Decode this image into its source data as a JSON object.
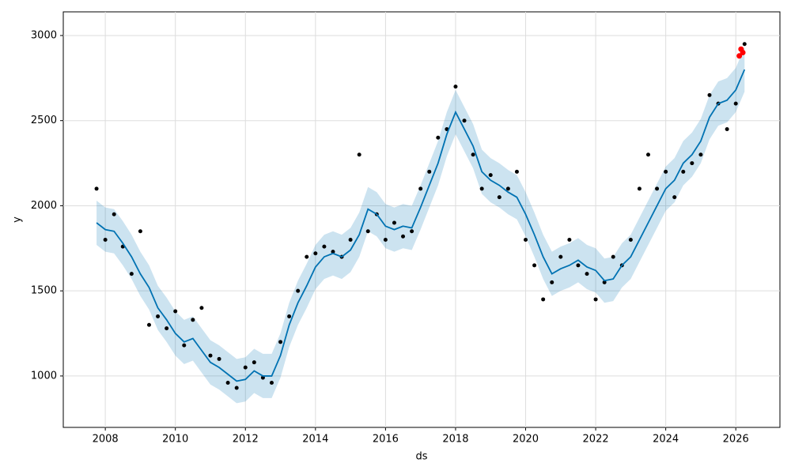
{
  "chart_data": {
    "type": "forecast",
    "x_label": "ds",
    "y_label": "y",
    "xlim": [
      2006.8,
      2027.26
    ],
    "ylim": [
      698,
      3139
    ],
    "xticks": [
      2008,
      2010,
      2012,
      2014,
      2016,
      2018,
      2020,
      2022,
      2024,
      2026
    ],
    "yticks": [
      1000,
      1500,
      2000,
      2500,
      3000
    ],
    "grid": true,
    "x": [
      2007.75,
      2008,
      2008.25,
      2008.5,
      2008.75,
      2009,
      2009.25,
      2009.5,
      2009.75,
      2010,
      2010.25,
      2010.5,
      2010.75,
      2011,
      2011.25,
      2011.5,
      2011.75,
      2012,
      2012.25,
      2012.5,
      2012.75,
      2013,
      2013.25,
      2013.5,
      2013.75,
      2014,
      2014.25,
      2014.5,
      2014.75,
      2015,
      2015.25,
      2015.5,
      2015.75,
      2016,
      2016.25,
      2016.5,
      2016.75,
      2017,
      2017.25,
      2017.5,
      2017.75,
      2018,
      2018.25,
      2018.5,
      2018.75,
      2019,
      2019.25,
      2019.5,
      2019.75,
      2020,
      2020.25,
      2020.5,
      2020.75,
      2021,
      2021.25,
      2021.5,
      2021.75,
      2022,
      2022.25,
      2022.5,
      2022.75,
      2023,
      2023.25,
      2023.5,
      2023.75,
      2024,
      2024.25,
      2024.5,
      2024.75,
      2025,
      2025.25,
      2025.5,
      2025.75,
      2026,
      2026.25
    ],
    "forecast": {
      "color": "#0072B2",
      "band_color": "#0072B2",
      "values": [
        1900,
        1860,
        1850,
        1780,
        1700,
        1600,
        1520,
        1400,
        1330,
        1250,
        1200,
        1220,
        1150,
        1080,
        1050,
        1010,
        970,
        980,
        1030,
        1000,
        1000,
        1120,
        1300,
        1430,
        1530,
        1640,
        1700,
        1720,
        1700,
        1740,
        1830,
        1980,
        1950,
        1880,
        1860,
        1880,
        1870,
        1990,
        2120,
        2250,
        2420,
        2550,
        2450,
        2350,
        2200,
        2150,
        2120,
        2080,
        2050,
        1950,
        1830,
        1700,
        1600,
        1630,
        1650,
        1680,
        1640,
        1620,
        1560,
        1570,
        1650,
        1700,
        1800,
        1900,
        2000,
        2100,
        2150,
        2250,
        2300,
        2380,
        2520,
        2600,
        2620,
        2680,
        2800
      ],
      "lower": [
        1770,
        1730,
        1720,
        1650,
        1570,
        1470,
        1390,
        1270,
        1200,
        1120,
        1070,
        1090,
        1020,
        950,
        920,
        880,
        840,
        850,
        900,
        870,
        870,
        990,
        1170,
        1300,
        1400,
        1510,
        1570,
        1590,
        1570,
        1610,
        1700,
        1850,
        1820,
        1750,
        1730,
        1750,
        1740,
        1860,
        1990,
        2120,
        2290,
        2420,
        2320,
        2220,
        2070,
        2020,
        1990,
        1950,
        1920,
        1820,
        1700,
        1570,
        1470,
        1500,
        1520,
        1550,
        1510,
        1490,
        1430,
        1440,
        1520,
        1570,
        1670,
        1770,
        1870,
        1970,
        2020,
        2120,
        2170,
        2250,
        2390,
        2470,
        2490,
        2550,
        2670
      ],
      "upper": [
        2030,
        1990,
        1980,
        1910,
        1830,
        1730,
        1650,
        1530,
        1460,
        1380,
        1330,
        1350,
        1280,
        1210,
        1180,
        1140,
        1100,
        1110,
        1160,
        1130,
        1130,
        1250,
        1430,
        1560,
        1660,
        1770,
        1830,
        1850,
        1830,
        1870,
        1960,
        2110,
        2080,
        2010,
        1990,
        2010,
        2000,
        2120,
        2250,
        2380,
        2550,
        2680,
        2580,
        2480,
        2330,
        2280,
        2250,
        2210,
        2180,
        2080,
        1960,
        1830,
        1730,
        1760,
        1780,
        1810,
        1770,
        1750,
        1690,
        1700,
        1780,
        1830,
        1930,
        2030,
        2130,
        2230,
        2280,
        2380,
        2430,
        2510,
        2650,
        2730,
        2750,
        2810,
        2930
      ]
    },
    "observed": {
      "color": "#000000",
      "values": [
        2100,
        1800,
        1950,
        1760,
        1600,
        1850,
        1300,
        1350,
        1280,
        1380,
        1180,
        1330,
        1400,
        1120,
        1100,
        960,
        930,
        1050,
        1080,
        990,
        960,
        1200,
        1350,
        1500,
        1700,
        1720,
        1760,
        1730,
        1700,
        1800,
        2300,
        1850,
        1950,
        1800,
        1900,
        1820,
        1850,
        2100,
        2200,
        2400,
        2450,
        2700,
        2500,
        2300,
        2100,
        2180,
        2050,
        2100,
        2200,
        1800,
        1650,
        1450,
        1550,
        1700,
        1800,
        1650,
        1600,
        1450,
        1550,
        1700,
        1650,
        1800,
        2100,
        2300,
        2100,
        2200,
        2050,
        2200,
        2250,
        2300,
        2650,
        2600,
        2450,
        2600,
        2950
      ]
    },
    "recent": {
      "color": "#ff0000",
      "x": [
        2026.1,
        2026.15,
        2026.2
      ],
      "values": [
        2880,
        2920,
        2900
      ]
    }
  }
}
